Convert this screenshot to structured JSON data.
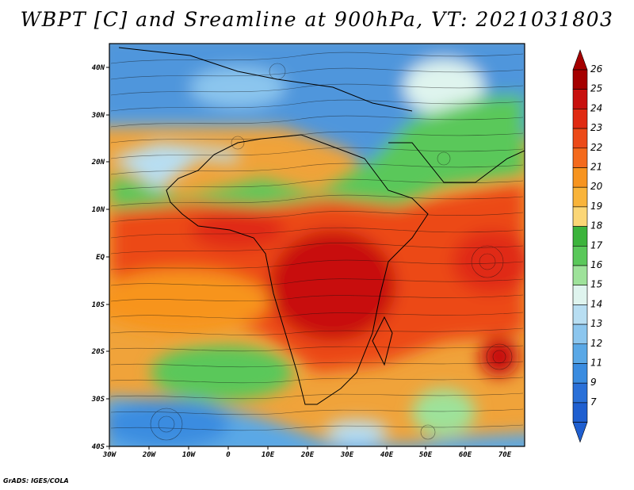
{
  "title": "WBPT [C] and Sreamline at 900hPa, VT: 2021031803",
  "map": {
    "lon_ticks": [
      "30W",
      "20W",
      "10W",
      "0",
      "10E",
      "20E",
      "30E",
      "40E",
      "50E",
      "60E",
      "70E"
    ],
    "lat_ticks": [
      "40N",
      "30N",
      "20N",
      "10N",
      "EQ",
      "10S",
      "20S",
      "30S",
      "40S"
    ],
    "lon_range": [
      -30,
      75
    ],
    "lat_range": [
      -40,
      45
    ],
    "layers": [
      "wet-bulb potential temperature shading",
      "streamlines",
      "coastlines"
    ]
  },
  "colorbar": {
    "labels": [
      "26",
      "25",
      "24",
      "23",
      "22",
      "21",
      "20",
      "19",
      "18",
      "17",
      "16",
      "15",
      "14",
      "13",
      "12",
      "11",
      "9",
      "7"
    ],
    "colors": [
      "#a50000",
      "#c8100e",
      "#e02a12",
      "#ec4a18",
      "#f46a1c",
      "#f7941f",
      "#f9b43a",
      "#fbd676",
      "#3cb43c",
      "#5ac85a",
      "#9ee29a",
      "#dff4ee",
      "#b8def2",
      "#8cc6ee",
      "#5aa8e6",
      "#3a8ce0",
      "#2a70d8",
      "#1f5fd0"
    ]
  },
  "footer": "GrADS: IGES/COLA"
}
